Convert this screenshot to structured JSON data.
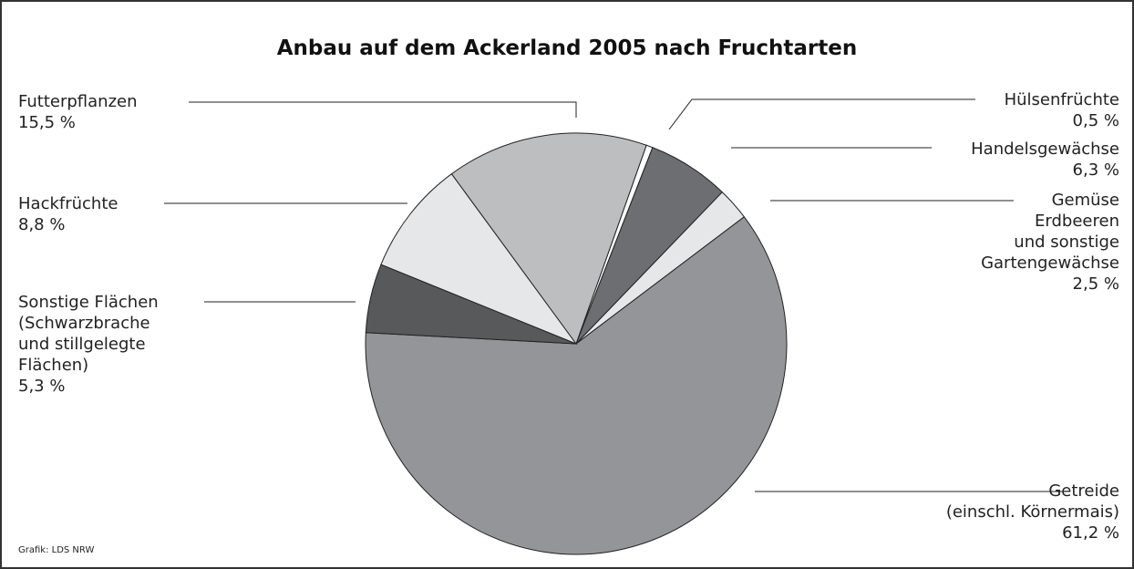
{
  "chart_data": {
    "type": "pie",
    "title": "Anbau auf dem Ackerland 2005 nach Fruchtarten",
    "categories": [
      "Hülsenfrüchte",
      "Handelsgewächse",
      "Gemüse\nErdbeeren\nund sonstige\nGartengewächse",
      "Getreide\n(einschl. Körnermais)",
      "Sonstige Flächen\n(Schwarzbrache\nund stillgelegte\nFlächen)",
      "Hackfrüchte",
      "Futterpflanzen"
    ],
    "values": [
      0.5,
      6.3,
      2.5,
      61.2,
      5.3,
      8.8,
      15.5
    ],
    "value_labels": [
      "0,5 %",
      "6,3 %",
      "2,5 %",
      "61,2 %",
      "5,3 %",
      "8,8 %",
      "15,5 %"
    ],
    "colors": [
      "#ffffff",
      "#6d6e71",
      "#e6e7e8",
      "#939598",
      "#58595b",
      "#e6e7e8",
      "#bcbec0"
    ],
    "source": "Grafik: LDS NRW"
  }
}
